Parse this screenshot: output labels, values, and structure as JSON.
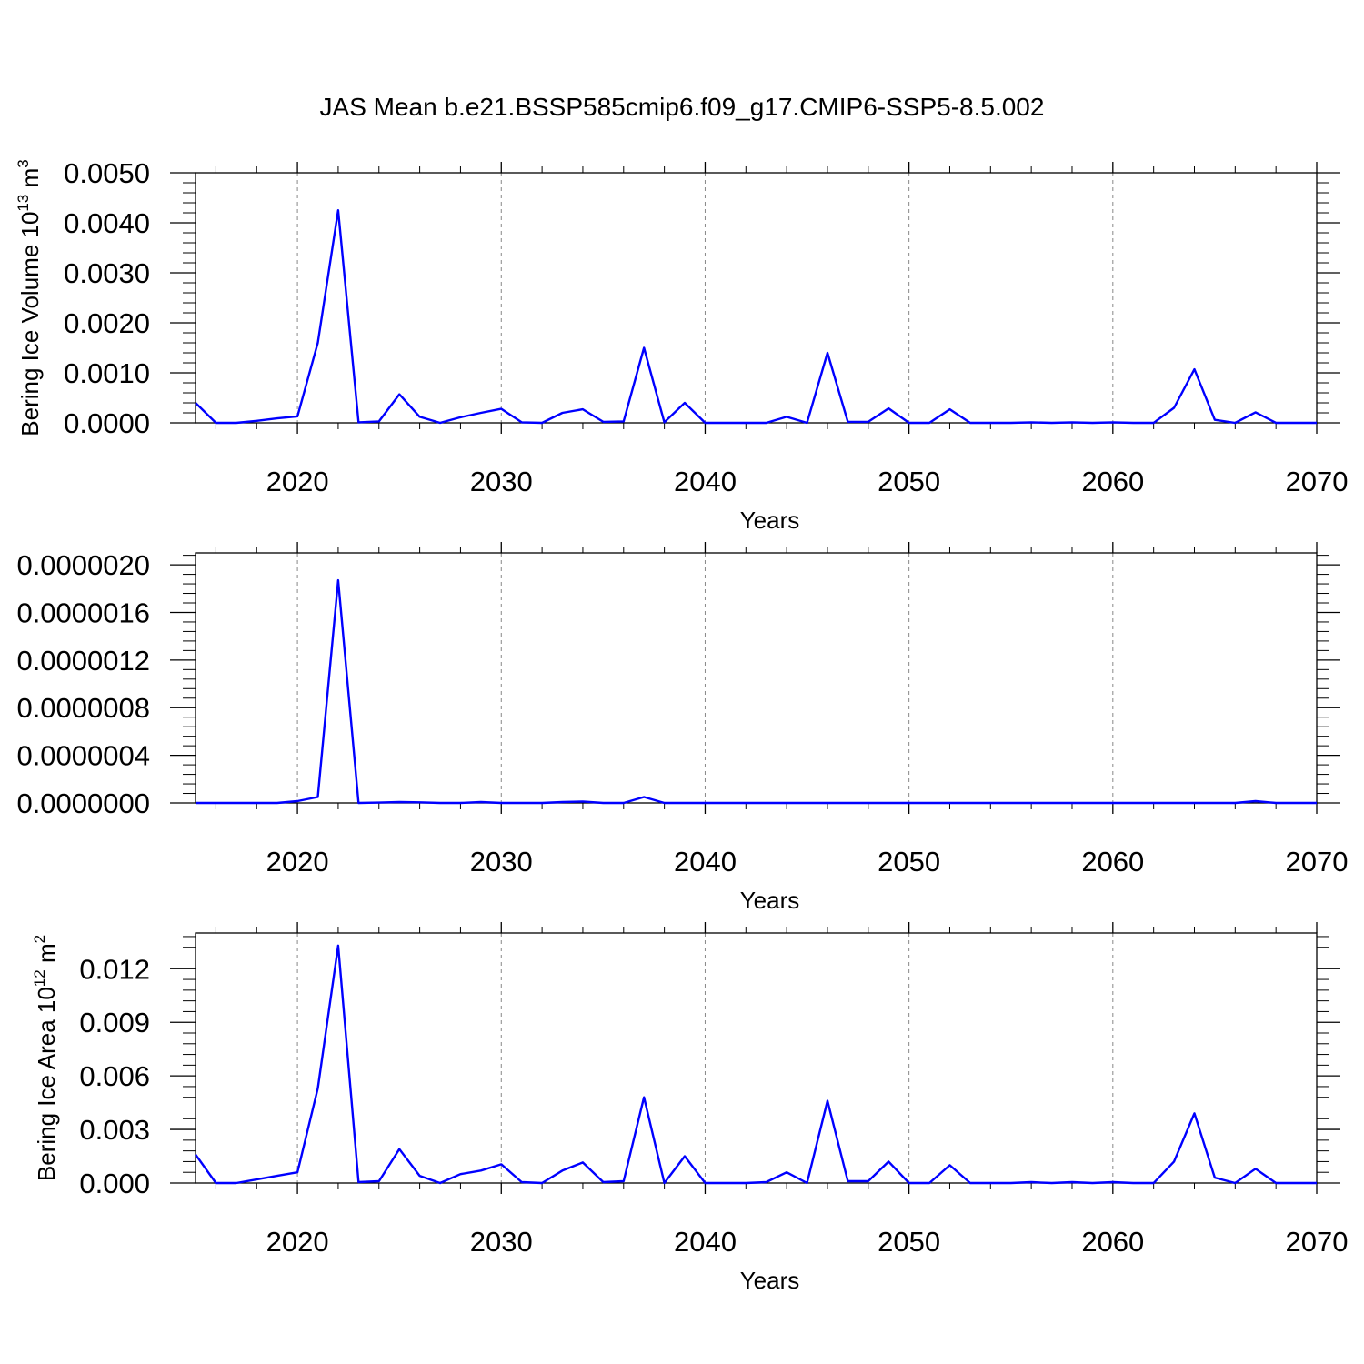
{
  "title": "JAS Mean b.e21.BSSP585cmip6.f09_g17.CMIP6-SSP5-8.5.002",
  "colors": {
    "series": "#0000ff",
    "axis": "#000000",
    "grid": "#888888"
  },
  "chart_data": [
    {
      "type": "line",
      "xlabel": "Years",
      "ylabel_main": "Bering Ice Volume 10",
      "ylabel_sup": "13",
      "ylabel_unit": " m",
      "ylabel_unit_sup": "3",
      "xlim": [
        2015,
        2070
      ],
      "ylim": [
        0,
        0.005
      ],
      "grid": "vertical dashed at major x ticks",
      "yticks": [
        0,
        0.001,
        0.002,
        0.003,
        0.004,
        0.005
      ],
      "ytick_labels": [
        "0.0000",
        "0.0010",
        "0.0020",
        "0.0030",
        "0.0040",
        "0.0050"
      ],
      "xticks": [
        2020,
        2030,
        2040,
        2050,
        2060,
        2070
      ],
      "xtick_labels": [
        "2020",
        "2030",
        "2040",
        "2050",
        "2060",
        "2070"
      ],
      "x": [
        2015,
        2016,
        2017,
        2018,
        2019,
        2020,
        2021,
        2022,
        2023,
        2024,
        2025,
        2026,
        2027,
        2028,
        2029,
        2030,
        2031,
        2032,
        2033,
        2034,
        2035,
        2036,
        2037,
        2038,
        2039,
        2040,
        2041,
        2042,
        2043,
        2044,
        2045,
        2046,
        2047,
        2048,
        2049,
        2050,
        2051,
        2052,
        2053,
        2054,
        2055,
        2056,
        2057,
        2058,
        2059,
        2060,
        2061,
        2062,
        2063,
        2064,
        2065,
        2066,
        2067,
        2068,
        2069,
        2070
      ],
      "y": [
        0.0004,
        0.0,
        0.0,
        4e-05,
        9e-05,
        0.00013,
        0.0016,
        0.00425,
        1e-05,
        3e-05,
        0.00057,
        0.00012,
        0.0,
        0.00011,
        0.0002,
        0.00028,
        1e-05,
        0.0,
        0.0002,
        0.00027,
        2e-05,
        3e-05,
        0.0015,
        1e-05,
        0.0004,
        0.0,
        0.0,
        0.0,
        0.0,
        0.00012,
        0.0,
        0.0014,
        2e-05,
        2e-05,
        0.00029,
        0.0,
        0.0,
        0.00027,
        0.0,
        0.0,
        0.0,
        1e-05,
        0.0,
        1e-05,
        0.0,
        1e-05,
        0.0,
        0.0,
        0.0003,
        0.00107,
        6e-05,
        0.0,
        0.00021,
        0.0,
        0.0,
        0.0
      ]
    },
    {
      "type": "line",
      "xlabel": "Years",
      "xlim": [
        2015,
        2070
      ],
      "ylim": [
        0,
        2.1e-06
      ],
      "grid": "vertical dashed at major x ticks",
      "yticks": [
        0,
        4e-07,
        8e-07,
        1.2e-06,
        1.6e-06,
        2e-06
      ],
      "ytick_labels": [
        "0.0000000",
        "0.0000004",
        "0.0000008",
        "0.0000012",
        "0.0000016",
        "0.0000020"
      ],
      "xticks": [
        2020,
        2030,
        2040,
        2050,
        2060,
        2070
      ],
      "xtick_labels": [
        "2020",
        "2030",
        "2040",
        "2050",
        "2060",
        "2070"
      ],
      "x": [
        2015,
        2016,
        2017,
        2018,
        2019,
        2020,
        2021,
        2022,
        2023,
        2024,
        2025,
        2026,
        2027,
        2028,
        2029,
        2030,
        2031,
        2032,
        2033,
        2034,
        2035,
        2036,
        2037,
        2038,
        2039,
        2040,
        2041,
        2042,
        2043,
        2044,
        2045,
        2046,
        2047,
        2048,
        2049,
        2050,
        2051,
        2052,
        2053,
        2054,
        2055,
        2056,
        2057,
        2058,
        2059,
        2060,
        2061,
        2062,
        2063,
        2064,
        2065,
        2066,
        2067,
        2068,
        2069,
        2070
      ],
      "y": [
        0.0,
        0.0,
        0.0,
        0.0,
        0.0,
        1.5e-08,
        5e-08,
        1.87e-06,
        0.0,
        3e-09,
        8e-09,
        5e-09,
        0.0,
        0.0,
        8e-09,
        0.0,
        0.0,
        0.0,
        8e-09,
        1.2e-08,
        0.0,
        0.0,
        5e-08,
        0.0,
        0.0,
        0.0,
        0.0,
        0.0,
        0.0,
        0.0,
        0.0,
        0.0,
        0.0,
        0.0,
        0.0,
        0.0,
        0.0,
        0.0,
        0.0,
        0.0,
        0.0,
        0.0,
        0.0,
        0.0,
        0.0,
        0.0,
        0.0,
        0.0,
        0.0,
        0.0,
        0.0,
        0.0,
        1.5e-08,
        0.0,
        0.0,
        0.0
      ]
    },
    {
      "type": "line",
      "xlabel": "Years",
      "ylabel_main": "Bering Ice Area 10",
      "ylabel_sup": "12",
      "ylabel_unit": " m",
      "ylabel_unit_sup": "2",
      "xlim": [
        2015,
        2070
      ],
      "ylim": [
        0,
        0.014
      ],
      "grid": "vertical dashed at major x ticks",
      "yticks": [
        0,
        0.003,
        0.006,
        0.009,
        0.012
      ],
      "ytick_labels": [
        "0.000",
        "0.003",
        "0.006",
        "0.009",
        "0.012"
      ],
      "xticks": [
        2020,
        2030,
        2040,
        2050,
        2060,
        2070
      ],
      "xtick_labels": [
        "2020",
        "2030",
        "2040",
        "2050",
        "2060",
        "2070"
      ],
      "x": [
        2015,
        2016,
        2017,
        2018,
        2019,
        2020,
        2021,
        2022,
        2023,
        2024,
        2025,
        2026,
        2027,
        2028,
        2029,
        2030,
        2031,
        2032,
        2033,
        2034,
        2035,
        2036,
        2037,
        2038,
        2039,
        2040,
        2041,
        2042,
        2043,
        2044,
        2045,
        2046,
        2047,
        2048,
        2049,
        2050,
        2051,
        2052,
        2053,
        2054,
        2055,
        2056,
        2057,
        2058,
        2059,
        2060,
        2061,
        2062,
        2063,
        2064,
        2065,
        2066,
        2067,
        2068,
        2069,
        2070
      ],
      "y": [
        0.0016,
        0.0,
        0.0,
        0.0002,
        0.0004,
        0.0006,
        0.0053,
        0.0133,
        5e-05,
        0.0001,
        0.0019,
        0.0004,
        0.0,
        0.0005,
        0.0007,
        0.00105,
        5e-05,
        0.0,
        0.0007,
        0.00115,
        5e-05,
        0.0001,
        0.0048,
        0.0,
        0.0015,
        0.0,
        0.0,
        0.0,
        5e-05,
        0.0006,
        0.0,
        0.0046,
        0.0001,
        0.0001,
        0.0012,
        0.0,
        0.0,
        0.001,
        0.0,
        0.0,
        0.0,
        5e-05,
        0.0,
        5e-05,
        0.0,
        5e-05,
        0.0,
        0.0,
        0.0012,
        0.0039,
        0.0003,
        0.0,
        0.0008,
        0.0,
        0.0,
        0.0
      ]
    }
  ]
}
